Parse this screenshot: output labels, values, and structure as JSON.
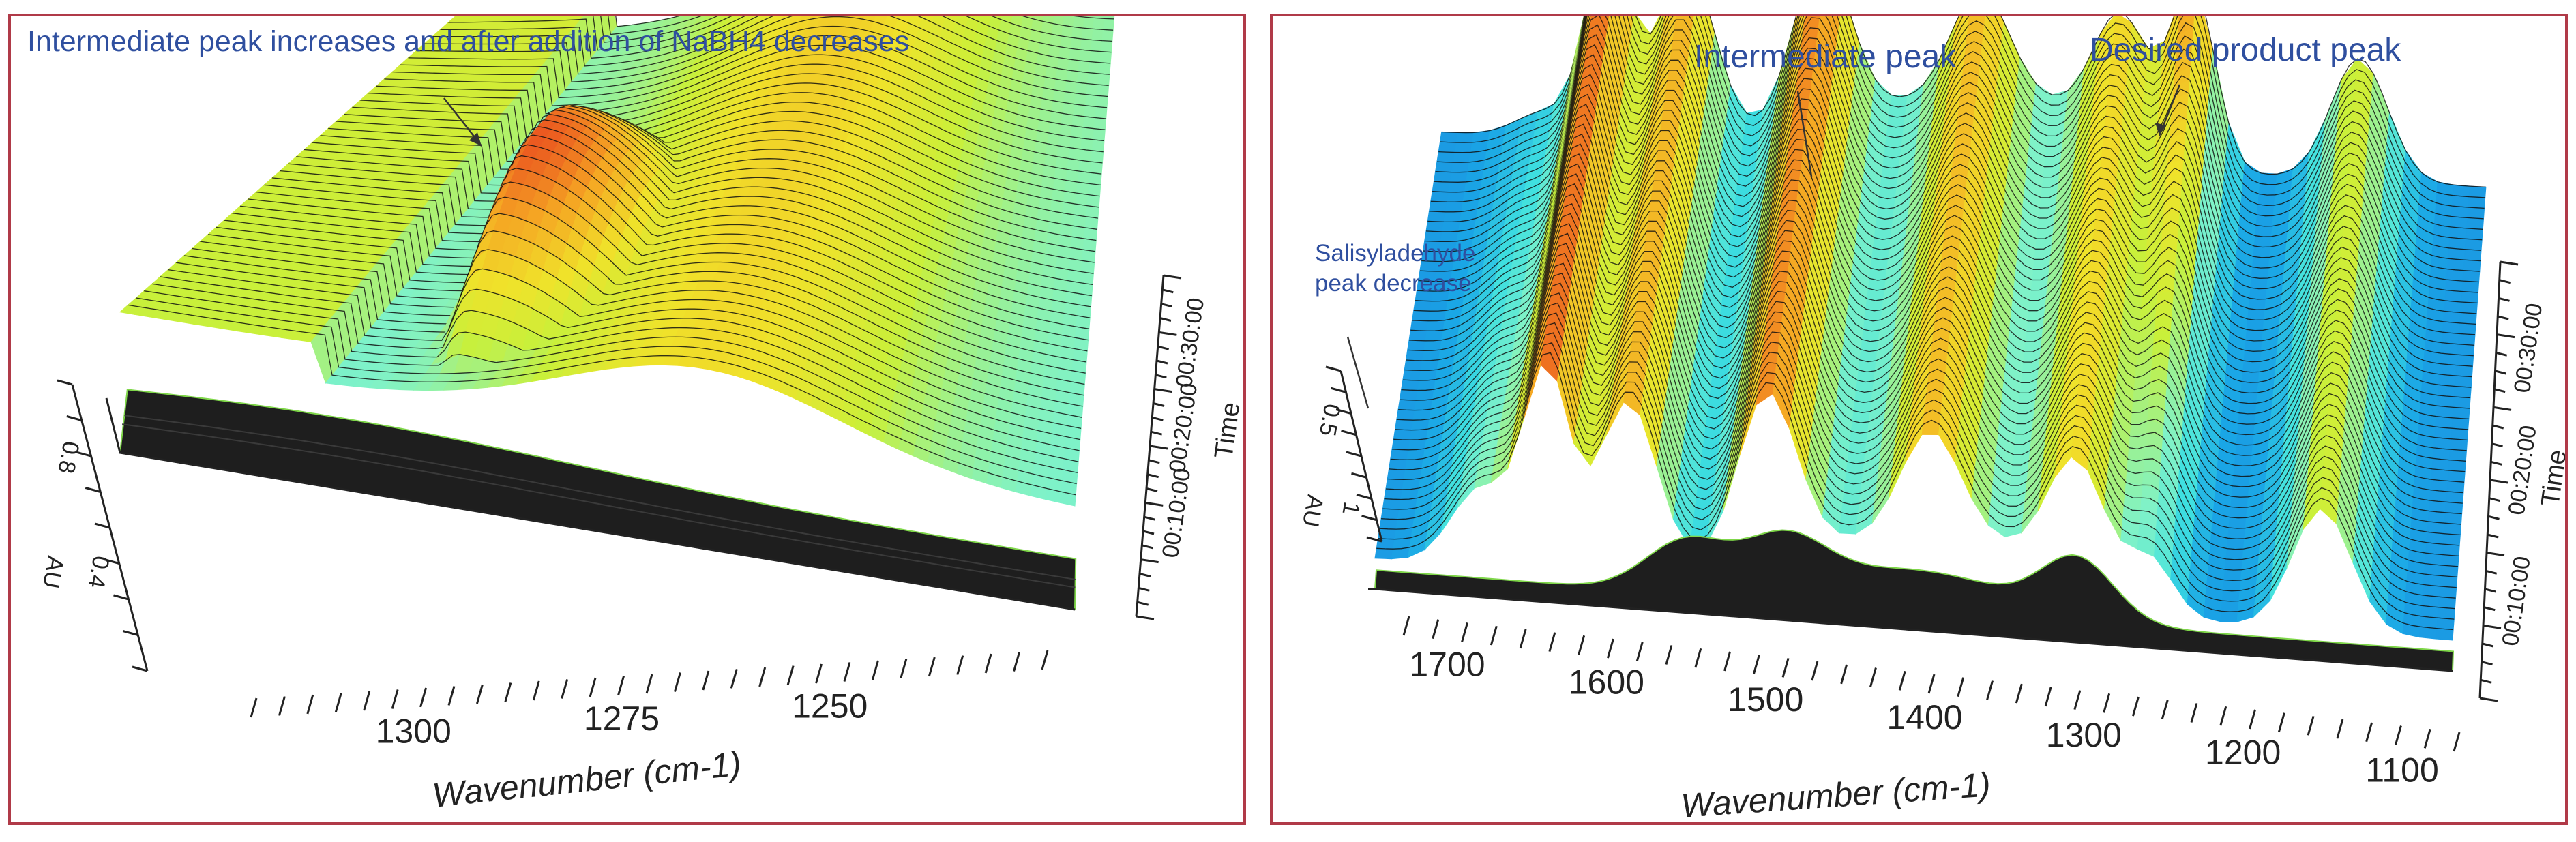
{
  "colors": {
    "frame": "#b03a48",
    "annotation": "#2f4f9f",
    "floor": "#1e1e1e",
    "colormap": [
      "#1f4fd1",
      "#1aa6e6",
      "#3fe0e0",
      "#7ff2c8",
      "#c9f03a",
      "#f0e22a",
      "#f5a623",
      "#e8431f"
    ]
  },
  "chart_data": [
    {
      "type": "surface3d",
      "annotation": "Intermediate peak increases and after addition of NaBH4 decreases",
      "xlabel": "Wavenumber (cm-1)",
      "ylabel": "Time",
      "zlabel": "AU",
      "x_ticks": [
        "1300",
        "1275",
        "1250"
      ],
      "z_ticks": [
        "0.8",
        "0.4"
      ],
      "time_ticks": [
        "00:10:00",
        "00:20:00",
        "00:30:00"
      ],
      "xlim": [
        1320,
        1225
      ],
      "zlim": [
        0,
        1.1
      ],
      "time_range_min": [
        0,
        36
      ],
      "n_traces": 46,
      "peaks": [
        {
          "label": "Intermediate peak",
          "wavenumber": 1288,
          "max_au": 1.05
        }
      ],
      "grid": false,
      "legend": "none"
    },
    {
      "type": "surface3d",
      "annotations": [
        "Intermediate peak",
        "Desired product peak",
        "Salisyladehyde peak decrease"
      ],
      "xlabel": "Wavenumber (cm-1)",
      "ylabel": "Time",
      "zlabel": "AU",
      "x_ticks": [
        "1700",
        "1600",
        "1500",
        "1400",
        "1300",
        "1200",
        "1100"
      ],
      "z_ticks": [
        "1",
        "0.5"
      ],
      "time_ticks": [
        "00:10:00",
        "00:20:00",
        "00:30:00"
      ],
      "xlim": [
        1730,
        1070
      ],
      "zlim": [
        0,
        1.2
      ],
      "time_range_min": [
        0,
        36
      ],
      "n_traces": 44,
      "peaks": [
        {
          "label": "Salisyladehyde peak decrease",
          "wavenumber": 1665,
          "max_au": 0.45
        },
        {
          "label": "",
          "wavenumber": 1625,
          "max_au": 1.15
        },
        {
          "label": "",
          "wavenumber": 1575,
          "max_au": 1.0
        },
        {
          "label": "Intermediate peak",
          "wavenumber": 1490,
          "max_au": 0.95
        },
        {
          "label": "",
          "wavenumber": 1390,
          "max_au": 0.6
        },
        {
          "label": "",
          "wavenumber": 1300,
          "max_au": 0.75
        },
        {
          "label": "Desired product peak",
          "wavenumber": 1255,
          "max_au": 1.05
        },
        {
          "label": "",
          "wavenumber": 1150,
          "max_au": 0.7
        }
      ],
      "grid": false,
      "legend": "none"
    }
  ]
}
